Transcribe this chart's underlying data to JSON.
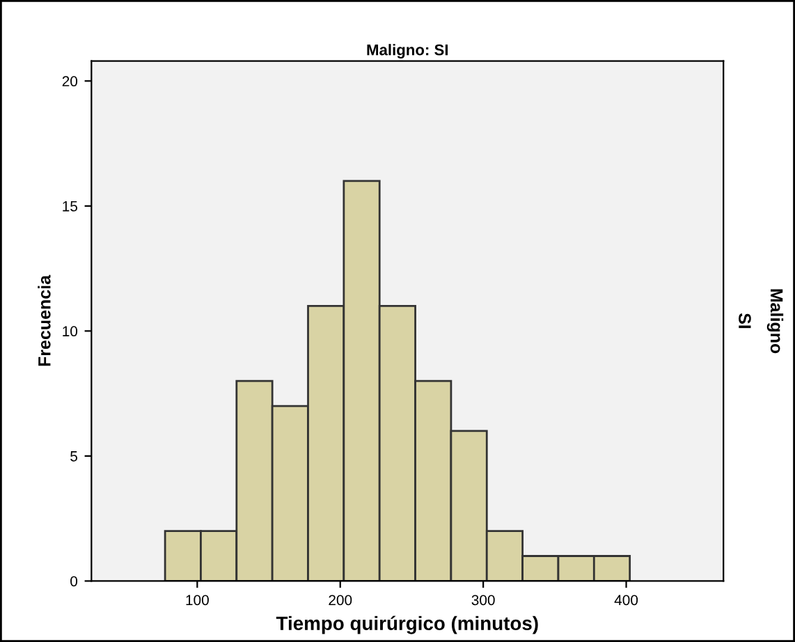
{
  "chart_data": {
    "type": "histogram",
    "title": "Maligno: SI",
    "xlabel": "Tiempo quirúrgico (minutos)",
    "ylabel": "Frecuencia",
    "y2label": "Maligno",
    "annotations": [
      "SI"
    ],
    "bins": [
      77.5,
      102.5,
      127.5,
      152.5,
      177.5,
      202.5,
      227.5,
      252.5,
      277.5,
      302.5,
      327.5,
      352.5,
      377.5,
      402.5
    ],
    "values": [
      2,
      2,
      8,
      7,
      11,
      16,
      11,
      8,
      6,
      2,
      1,
      1,
      1
    ],
    "color": "#d9d3a4",
    "xlim": [
      26,
      468
    ],
    "ylim": [
      0,
      20.8
    ],
    "xticks": [
      100,
      200,
      300,
      400
    ],
    "yticks": [
      0,
      5,
      10,
      15,
      20
    ],
    "grid": false,
    "legend": false
  }
}
